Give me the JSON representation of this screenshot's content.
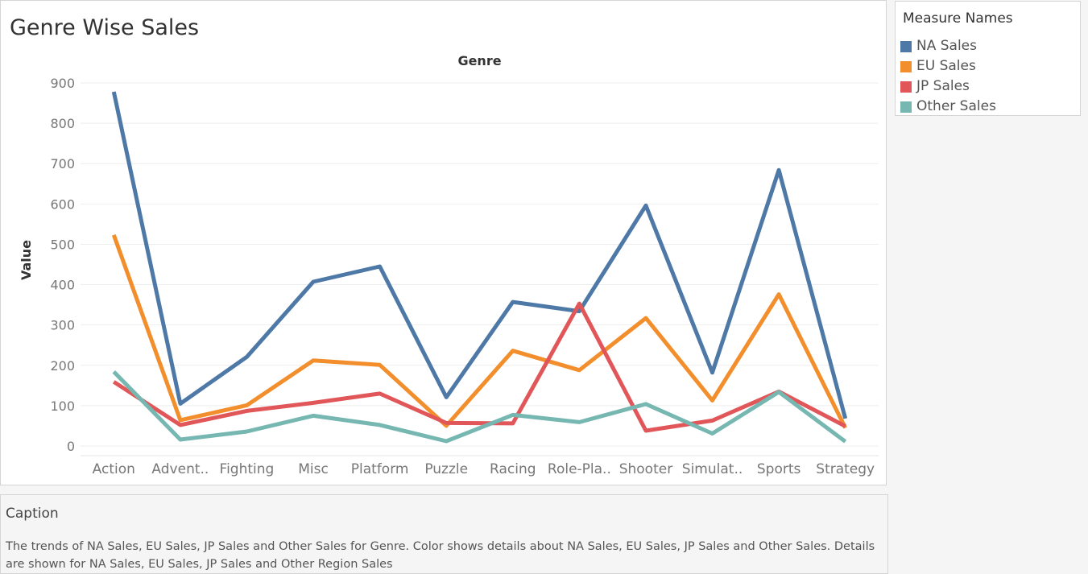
{
  "title": "Genre Wise Sales",
  "legend": {
    "title": "Measure Names",
    "items": [
      {
        "label": "NA Sales",
        "color": "#4e79a7"
      },
      {
        "label": "EU Sales",
        "color": "#f28e2b"
      },
      {
        "label": "JP Sales",
        "color": "#e15759"
      },
      {
        "label": "Other Sales",
        "color": "#76b7b2"
      }
    ]
  },
  "caption": {
    "title": "Caption",
    "text": "The trends of NA Sales, EU Sales, JP Sales and Other Sales for Genre.  Color shows details about NA Sales, EU Sales, JP Sales and Other Sales.  Details are shown for NA Sales, EU Sales, JP Sales and Other Region Sales"
  },
  "chart_data": {
    "type": "line",
    "title": "Genre Wise Sales",
    "xlabel": "Genre",
    "ylabel": "Value",
    "x_tick_labels": [
      "Action",
      "Advent..",
      "Fighting",
      "Misc",
      "Platform",
      "Puzzle",
      "Racing",
      "Role-Pla..",
      "Shooter",
      "Simulat..",
      "Sports",
      "Strategy"
    ],
    "y_ticks": [
      "900",
      "800",
      "700",
      "600",
      "500",
      "400",
      "300",
      "200",
      "100",
      "0"
    ],
    "ylim": [
      0,
      900
    ],
    "grid": true,
    "legend_position": "right",
    "series": [
      {
        "name": "NA Sales",
        "color": "#4e79a7",
        "values": [
          878,
          105,
          221,
          407,
          445,
          121,
          357,
          334,
          596,
          182,
          684,
          68
        ]
      },
      {
        "name": "EU Sales",
        "color": "#f28e2b",
        "values": [
          523,
          64,
          101,
          212,
          201,
          50,
          236,
          188,
          317,
          113,
          376,
          45
        ]
      },
      {
        "name": "JP Sales",
        "color": "#e15759",
        "values": [
          159,
          52,
          87,
          107,
          130,
          57,
          56,
          353,
          38,
          63,
          135,
          49
        ]
      },
      {
        "name": "Other Sales",
        "color": "#76b7b2",
        "values": [
          184,
          16,
          36,
          75,
          52,
          12,
          77,
          59,
          104,
          31,
          134,
          11
        ]
      }
    ]
  }
}
